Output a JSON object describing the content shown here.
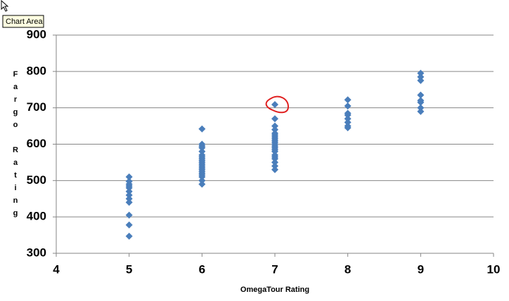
{
  "tooltip": "Chart Area",
  "chart_data": {
    "type": "scatter",
    "x_label": "OmegaTour Rating",
    "y_label": "Fargo Rating",
    "xlim": [
      4,
      10
    ],
    "xticks": [
      4,
      5,
      6,
      7,
      8,
      9,
      10
    ],
    "ylim": [
      300,
      900
    ],
    "yticks": [
      300,
      400,
      500,
      600,
      700,
      800,
      900
    ],
    "grid": true,
    "series": [
      {
        "color": "#4a7ebb",
        "x": [
          5,
          5,
          5,
          5,
          5,
          5,
          5,
          5,
          5,
          5,
          5,
          5,
          6,
          6,
          6,
          6,
          6,
          6,
          6,
          6,
          6,
          6,
          6,
          6,
          6,
          6,
          6,
          6,
          6,
          6,
          6,
          6,
          7,
          7,
          7,
          7,
          7,
          7,
          7,
          7,
          7,
          7,
          7,
          7,
          7,
          7,
          7,
          7,
          7,
          7,
          7,
          7,
          7,
          8,
          8,
          8,
          8,
          8,
          8,
          8,
          8,
          9,
          9,
          9,
          9,
          9,
          9,
          9,
          9
        ],
        "values": [
          510,
          498,
          490,
          485,
          480,
          470,
          460,
          450,
          440,
          405,
          378,
          347,
          642,
          600,
          595,
          590,
          580,
          570,
          565,
          560,
          555,
          550,
          545,
          540,
          535,
          530,
          525,
          520,
          515,
          510,
          500,
          490,
          709,
          670,
          650,
          640,
          630,
          625,
          620,
          615,
          610,
          605,
          600,
          595,
          590,
          585,
          580,
          570,
          565,
          560,
          550,
          540,
          530,
          722,
          705,
          685,
          680,
          670,
          660,
          650,
          645,
          795,
          785,
          775,
          735,
          720,
          715,
          700,
          690
        ]
      }
    ]
  }
}
